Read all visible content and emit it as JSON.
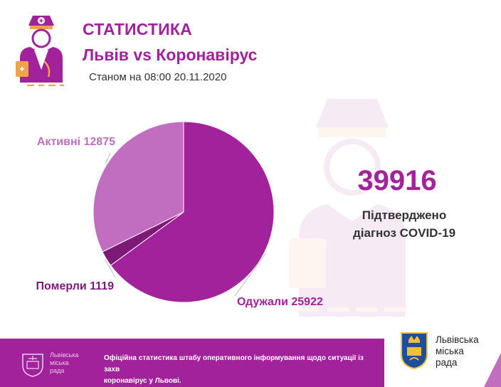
{
  "header": {
    "title": "СТАТИСТИКА",
    "subtitle": "Львів vs Коронавірус",
    "as_of": "Станом на 08:00 20.11.2020"
  },
  "kpi": {
    "value": "39916",
    "label_line1": "Підтверджено",
    "label_line2": "діагноз COVID-19"
  },
  "footer": {
    "org_line1": "Львівська",
    "org_line2": "міська",
    "org_line3": "рада",
    "notice_line1": "Офіційна статистика штабу оперативного інформування щодо ситуації із захв",
    "notice_line2": "коронавірус у Львові."
  },
  "colors": {
    "brand_purple": "#a2229b",
    "active": "#c16ec1",
    "deceased": "#7d1a78",
    "recovered": "#a2229b"
  },
  "chart_data": {
    "type": "pie",
    "slices": [
      {
        "label": "Одужали",
        "value": 25922,
        "color": "#a2229b",
        "label_color": "#a2229b"
      },
      {
        "label": "Померли",
        "value": 1119,
        "color": "#7d1a78",
        "label_color": "#7d1a78"
      },
      {
        "label": "Активні",
        "value": 12875,
        "color": "#c16ec1",
        "label_color": "#c16ec1"
      }
    ]
  }
}
